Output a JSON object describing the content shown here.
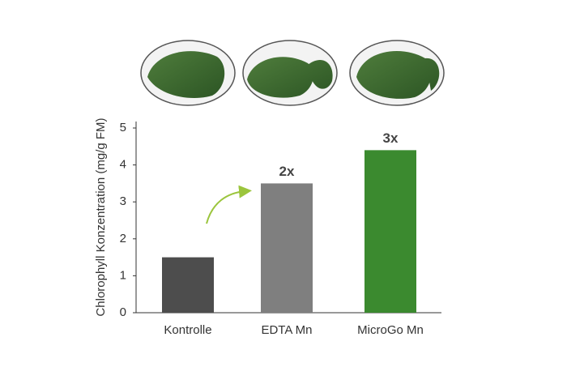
{
  "chart_data": {
    "type": "bar",
    "ylabel": "Chlorophyll Konzentration (mg/g FM)",
    "categories": [
      "Kontrolle",
      "EDTA Mn",
      "MicroGo Mn"
    ],
    "values": [
      1.5,
      3.5,
      4.4
    ],
    "colors": [
      "#4d4d4d",
      "#7f7f7f",
      "#3b8a2f"
    ],
    "annotations": [
      null,
      "2x",
      "3x"
    ],
    "ylim": [
      0,
      5
    ],
    "yticks": [
      0,
      1,
      2,
      3,
      4,
      5
    ],
    "grid": false
  }
}
